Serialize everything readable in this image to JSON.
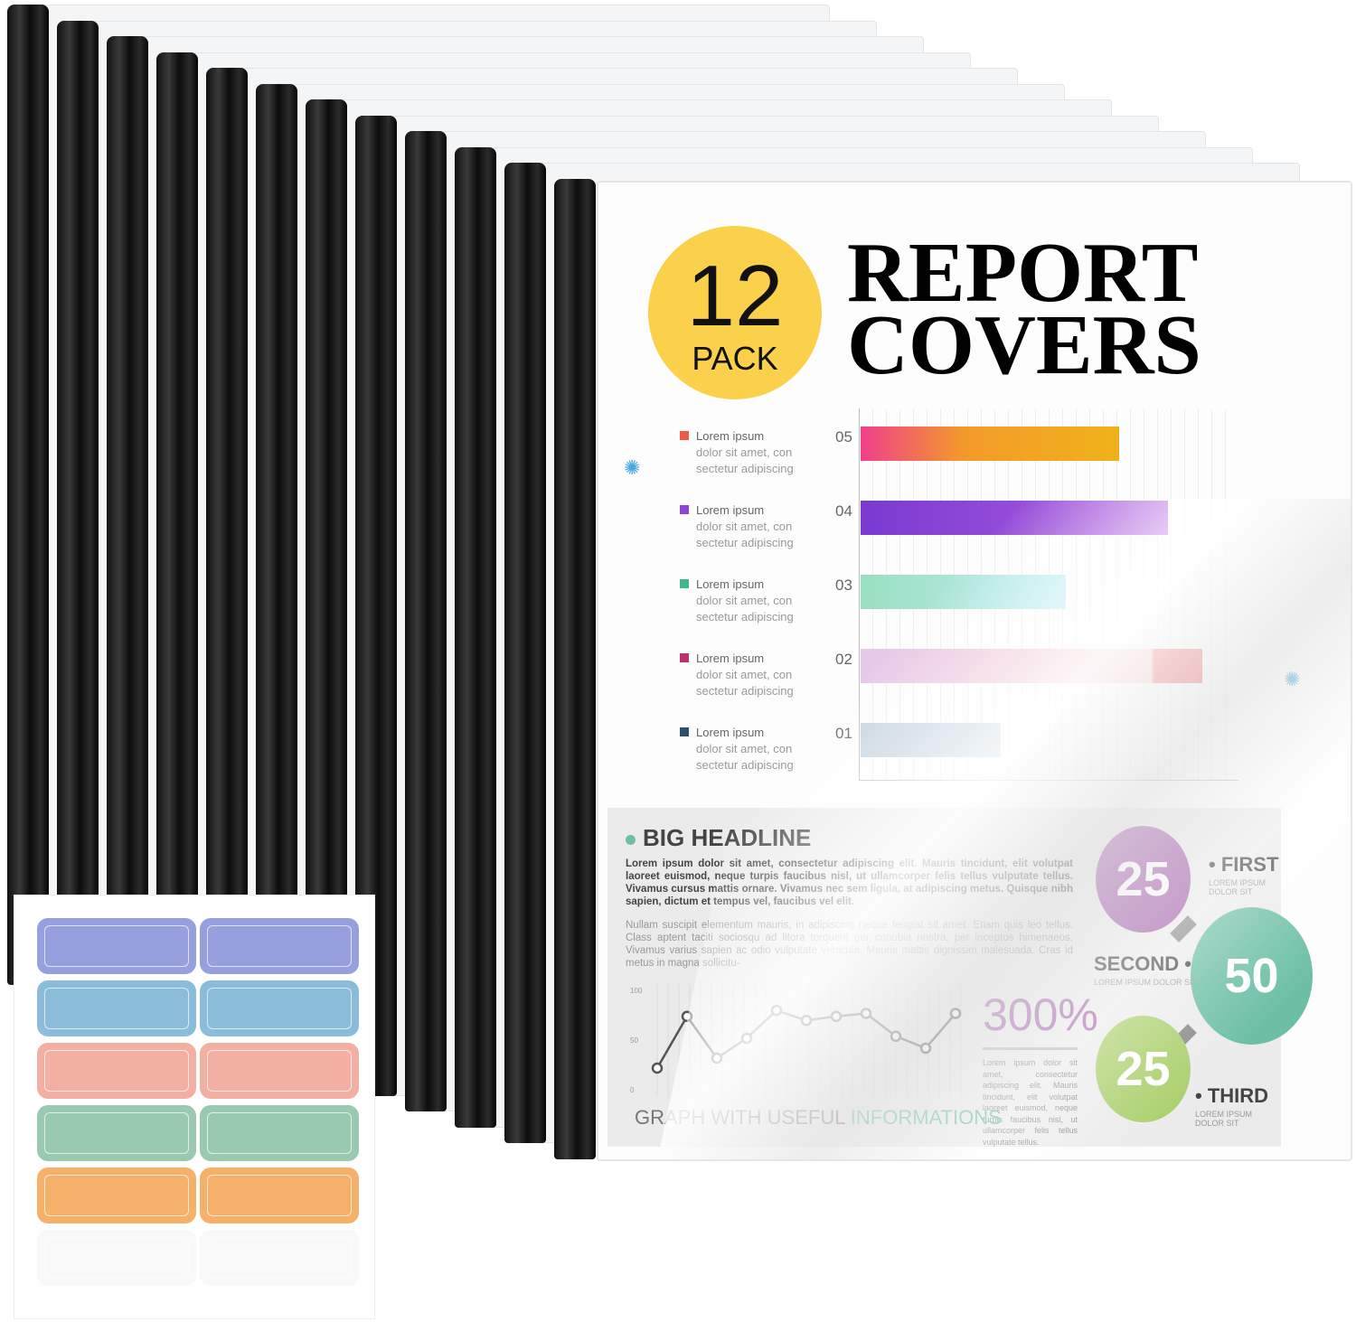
{
  "product": {
    "badge_number": "12",
    "badge_unit": "PACK",
    "title_line1": "REPORT",
    "title_line2": "COVERS",
    "badge_color": "#fbd14b",
    "spine_color": "#111111"
  },
  "cover_chart": {
    "legend": [
      {
        "heading": "Lorem ipsum",
        "line1": "dolor sit amet, con",
        "line2": "sectetur adipiscing",
        "color": "#f15a4a"
      },
      {
        "heading": "Lorem ipsum",
        "line1": "dolor sit amet, con",
        "line2": "sectetur adipiscing",
        "color": "#8e44d6"
      },
      {
        "heading": "Lorem ipsum",
        "line1": "dolor sit amet, con",
        "line2": "sectetur adipiscing",
        "color": "#3cb88a"
      },
      {
        "heading": "Lorem ipsum",
        "line1": "dolor sit amet, con",
        "line2": "sectetur adipiscing",
        "color": "#c0306a"
      },
      {
        "heading": "Lorem ipsum",
        "line1": "dolor sit amet, con",
        "line2": "sectetur adipiscing",
        "color": "#2c4f6e"
      }
    ],
    "bars": [
      {
        "label": "05",
        "value": 0.68,
        "color": "linear-gradient(90deg,#f0408a,#f39a2a 40%,#f0b21a)"
      },
      {
        "label": "04",
        "value": 0.81,
        "color": "linear-gradient(90deg,#7a3ad0,#b05ce0)"
      },
      {
        "label": "03",
        "value": 0.54,
        "color": "linear-gradient(90deg,#9adfc0,#bfeef5)"
      },
      {
        "label": "02",
        "value": 0.9,
        "color": "linear-gradient(90deg,#e6c8ea,#f7c8c8 85%,#f05050 86%)"
      },
      {
        "label": "01",
        "value": 0.37,
        "color": "#c5d3de"
      }
    ]
  },
  "infographic": {
    "headline": "BIG HEADLINE",
    "para1": "Lorem ipsum dolor sit amet, consectetur adipiscing elit. Mauris tincidunt, elit volutpat laoreet euismod, neque turpis faucibus nisl, ut ullamcorper felis tellus vulputate tellus. Vivamus cursus mattis ornare. Vivamus nec sem ligula, at adipiscing metus. Quisque nibh sapien, dictum et tempus vel, faucibus vel elit.",
    "para2": "Nullam suscipit elementum mauris, in adipiscing neque feugiat sit amet. Etiam quis leo tellus. Class aptent taciti sociosqu ad litora torquent per conubia nostra, per inceptos himenaeos. Vivamus varius sapien ac odio vulputate vehicula. Mauris mattis dignissim malesuada. Cras id metus in magna sollicitu-",
    "percent": "300%",
    "percent_text": "Lorem ipsum dolor sit amet, consectetur adipiscing elit. Mauris tincidunt, elit volutpat laoreet euismod, neque turpis faucibus nisl, ut ullamcorper felis tellus vulputate tellus.",
    "graph_title_a": "GRAPH WITH USEFUL ",
    "graph_title_b": "INFORMATIONS",
    "graph_axis": [
      "100",
      "50",
      "0"
    ],
    "graph_values": [
      20,
      72,
      30,
      50,
      78,
      68,
      72,
      75,
      52,
      40,
      75
    ],
    "circles": [
      {
        "value": "25",
        "label": "FIRST",
        "sub": "LOREM IPSUM DOLOR SIT",
        "color": "#a05aa8"
      },
      {
        "value": "50",
        "label": "SECOND",
        "sub": "LOREM IPSUM DOLOR SIT",
        "color": "#6cbfa6"
      },
      {
        "value": "25",
        "label": "THIRD",
        "sub": "LOREM IPSUM DOLOR SIT",
        "color": "#a9cf6a"
      }
    ]
  },
  "label_sheet": {
    "colors": [
      "#8c96dc",
      "#7fb6d8",
      "#f3a79a",
      "#8fc4a8",
      "#f5a95a"
    ]
  }
}
